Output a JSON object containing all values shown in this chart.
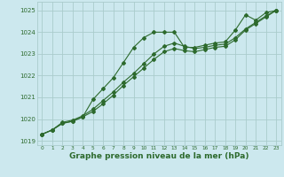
{
  "title": "Graphe pression niveau de la mer (hPa)",
  "bg_color": "#cce8ee",
  "grid_color": "#aacccc",
  "line_color": "#2d6a2d",
  "xlim": [
    -0.5,
    23.5
  ],
  "ylim": [
    1018.8,
    1025.4
  ],
  "yticks": [
    1019,
    1020,
    1021,
    1022,
    1023,
    1024,
    1025
  ],
  "xticks": [
    0,
    1,
    2,
    3,
    4,
    5,
    6,
    7,
    8,
    9,
    10,
    11,
    12,
    13,
    14,
    15,
    16,
    17,
    18,
    19,
    20,
    21,
    22,
    23
  ],
  "series1_x": [
    0,
    1,
    2,
    3,
    4,
    5,
    6,
    7,
    8,
    9,
    10,
    11,
    12,
    13,
    14,
    15,
    16,
    17,
    18,
    19,
    20,
    21,
    22,
    23
  ],
  "series1_y": [
    1019.3,
    1019.5,
    1019.8,
    1019.9,
    1020.1,
    1020.9,
    1021.4,
    1021.9,
    1022.6,
    1023.3,
    1023.75,
    1024.0,
    1024.0,
    1024.0,
    1023.3,
    1023.3,
    1023.4,
    1023.5,
    1023.55,
    1024.1,
    1024.8,
    1024.55,
    1024.9,
    1025.0
  ],
  "series2_x": [
    0,
    1,
    2,
    3,
    4,
    5,
    6,
    7,
    8,
    9,
    10,
    11,
    12,
    13,
    14,
    15,
    16,
    17,
    18,
    19,
    20,
    21,
    22,
    23
  ],
  "series2_y": [
    1019.3,
    1019.5,
    1019.85,
    1019.95,
    1020.15,
    1020.45,
    1020.85,
    1021.25,
    1021.7,
    1022.1,
    1022.55,
    1023.0,
    1023.35,
    1023.5,
    1023.35,
    1023.25,
    1023.3,
    1023.4,
    1023.45,
    1023.75,
    1024.15,
    1024.45,
    1024.75,
    1025.0
  ],
  "series3_x": [
    0,
    1,
    2,
    3,
    4,
    5,
    6,
    7,
    8,
    9,
    10,
    11,
    12,
    13,
    14,
    15,
    16,
    17,
    18,
    19,
    20,
    21,
    22,
    23
  ],
  "series3_y": [
    1019.3,
    1019.5,
    1019.8,
    1019.9,
    1020.1,
    1020.35,
    1020.7,
    1021.1,
    1021.55,
    1021.95,
    1022.35,
    1022.75,
    1023.1,
    1023.25,
    1023.15,
    1023.1,
    1023.2,
    1023.3,
    1023.35,
    1023.65,
    1024.1,
    1024.4,
    1024.7,
    1025.0
  ],
  "tick_color": "#2d6a2d",
  "tick_fontsize": 5.5,
  "xlabel_fontsize": 6.5
}
